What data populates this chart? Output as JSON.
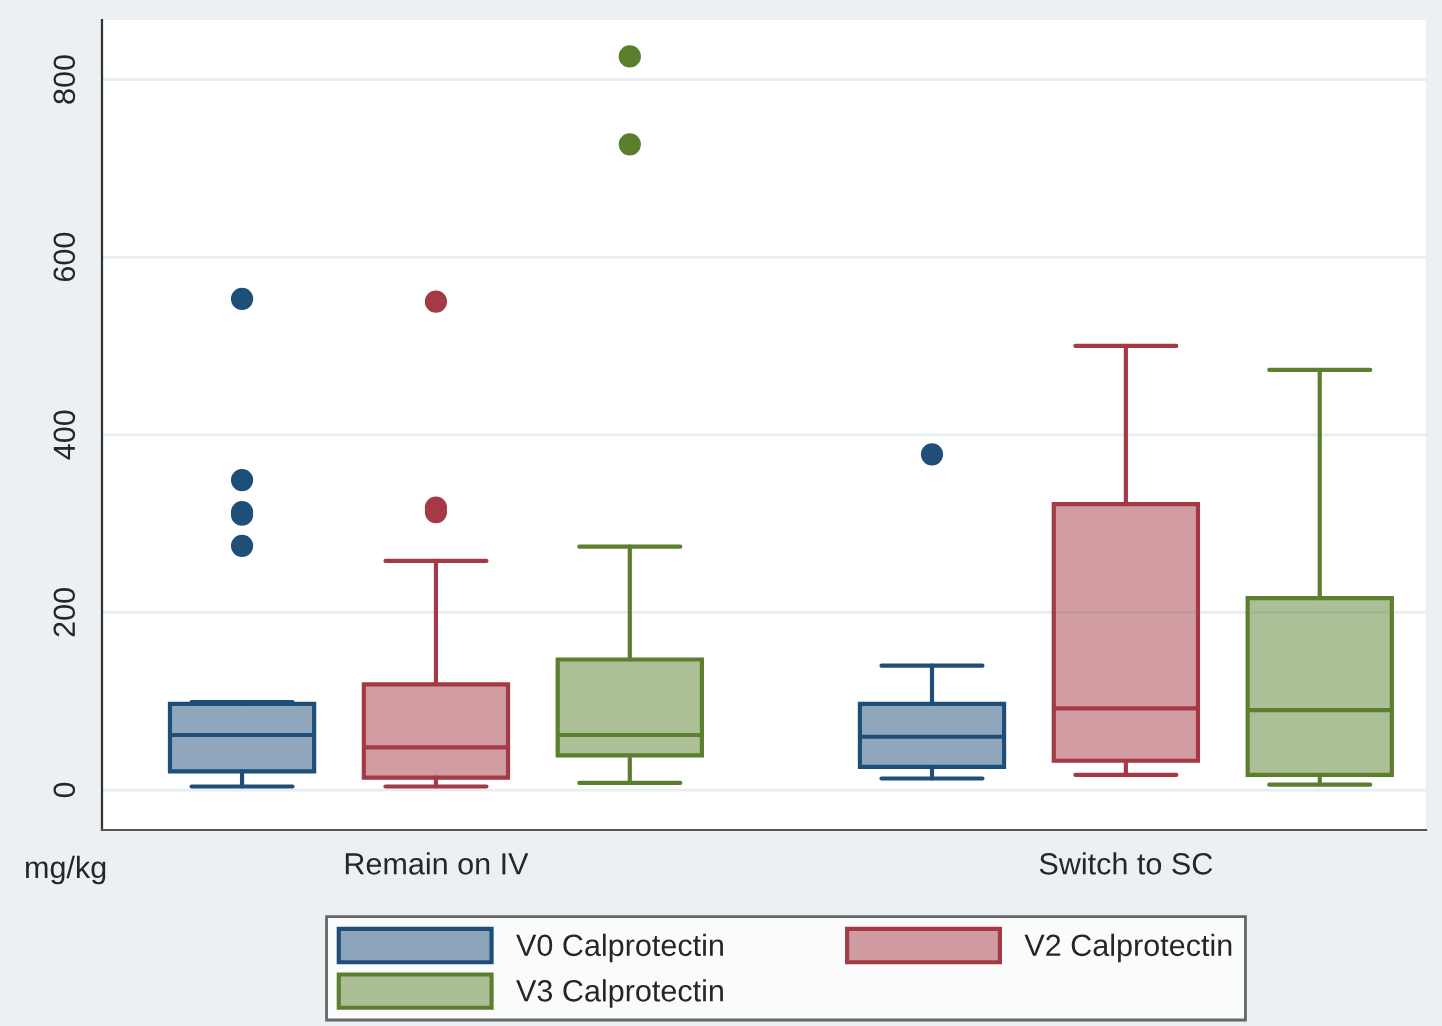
{
  "chart_data": {
    "type": "box",
    "categories": [
      "Remain on IV",
      "Switch to SC"
    ],
    "annotations": [
      "mg/kg"
    ],
    "ylim": [
      -45,
      867
    ],
    "yticks": [
      0,
      200,
      400,
      600,
      800
    ],
    "grid": "y",
    "legend": "bottom",
    "series": [
      {
        "name": "V0 Calprotectin",
        "color": "#1f4e79",
        "boxes": [
          {
            "low": 4,
            "q1": 21,
            "median": 62,
            "q3": 97,
            "high": 99,
            "outliers": [
              553,
              349,
              313,
              310,
              275
            ]
          },
          {
            "low": 13,
            "q1": 26,
            "median": 60,
            "q3": 97,
            "high": 140,
            "outliers": [
              378
            ]
          }
        ]
      },
      {
        "name": "V2 Calprotectin",
        "color": "#a33a45",
        "boxes": [
          {
            "low": 4,
            "q1": 14,
            "median": 48,
            "q3": 119,
            "high": 258,
            "outliers": [
              550,
              318,
              313
            ]
          },
          {
            "low": 17,
            "q1": 33,
            "median": 92,
            "q3": 322,
            "high": 500
          }
        ]
      },
      {
        "name": "V3 Calprotectin",
        "color": "#5b7f2e",
        "boxes": [
          {
            "low": 8,
            "q1": 39,
            "median": 62,
            "q3": 147,
            "high": 274,
            "outliers": [
              727,
              826
            ]
          },
          {
            "low": 6,
            "q1": 17,
            "median": 90,
            "q3": 216,
            "high": 473
          }
        ]
      }
    ]
  }
}
